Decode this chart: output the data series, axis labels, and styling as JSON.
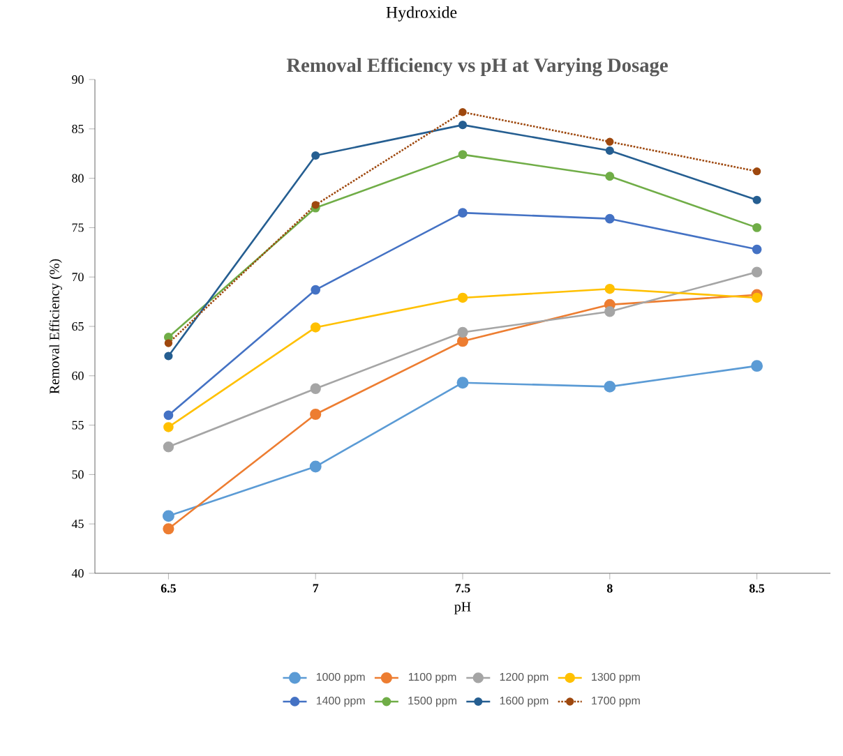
{
  "chart_data": {
    "type": "line",
    "title": "Removal Efficiency vs pH at Varying Dosage",
    "xlabel": "pH",
    "ylabel": "Removal Efficiency (%)",
    "annotations": [
      "Hydroxide"
    ],
    "x": [
      6.5,
      7,
      7.5,
      8,
      8.5
    ],
    "xlim": [
      6.25,
      8.75
    ],
    "xticks": [
      6.5,
      7,
      7.5,
      8,
      8.5
    ],
    "ylim": [
      40,
      90
    ],
    "yticks": [
      40,
      45,
      50,
      55,
      60,
      65,
      70,
      75,
      80,
      85,
      90
    ],
    "marker": "circle",
    "legend": "bottom",
    "series": [
      {
        "name": "1000 ppm",
        "color": "#5b9bd5",
        "values": [
          45.8,
          50.8,
          59.3,
          58.9,
          61.0
        ]
      },
      {
        "name": "1100 ppm",
        "color": "#ed7d31",
        "values": [
          44.5,
          56.1,
          63.5,
          67.2,
          68.2
        ]
      },
      {
        "name": "1200 ppm",
        "color": "#a5a5a5",
        "values": [
          52.8,
          58.7,
          64.4,
          66.5,
          70.5
        ]
      },
      {
        "name": "1300 ppm",
        "color": "#ffc000",
        "values": [
          54.8,
          64.9,
          67.9,
          68.8,
          67.9
        ]
      },
      {
        "name": "1400 ppm",
        "color": "#4472c4",
        "values": [
          56.0,
          68.7,
          76.5,
          75.9,
          72.8
        ]
      },
      {
        "name": "1500 ppm",
        "color": "#70ad47",
        "values": [
          63.9,
          77.0,
          82.4,
          80.2,
          75.0
        ]
      },
      {
        "name": "1600 ppm",
        "color": "#255e91",
        "values": [
          62.0,
          82.3,
          85.4,
          82.8,
          77.8
        ]
      },
      {
        "name": "1700 ppm",
        "color": "#9e480e",
        "values": [
          63.3,
          77.3,
          86.7,
          83.7,
          80.7
        ],
        "line_style": "dotted"
      }
    ]
  }
}
